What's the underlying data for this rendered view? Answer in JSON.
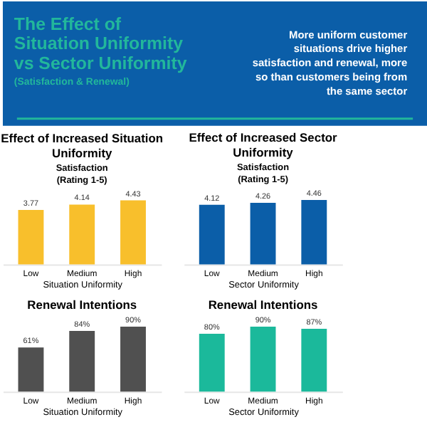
{
  "chart_data": [
    {
      "type": "other",
      "title": "The Effect of Situation Uniformity vs Sector Uniformity",
      "subtitle": "(Satisfaction & Renewal)",
      "annotations": [
        "More uniform customer situations drive higher satisfaction and renewal, more so than customers being from the same sector"
      ]
    },
    {
      "type": "bar",
      "title": "Effect of Increased Situation Uniformity",
      "subtitle": "Satisfaction (Rating 1-5)",
      "xlabel": "Situation Uniformity",
      "categories": [
        "Low",
        "Medium",
        "High"
      ],
      "values": [
        3.77,
        4.14,
        4.43
      ],
      "color": "#f8bf2c",
      "data_labels": true
    },
    {
      "type": "bar",
      "title": "Effect of Increased Sector Uniformity",
      "subtitle": "Satisfaction (Rating 1-5)",
      "xlabel": "Sector Uniformity",
      "categories": [
        "Low",
        "Medium",
        "High"
      ],
      "values": [
        4.12,
        4.26,
        4.46
      ],
      "color": "#0b5ea8",
      "data_labels": true
    },
    {
      "type": "bar",
      "title": "Renewal Intentions",
      "xlabel": "Situation Uniformity",
      "categories": [
        "Low",
        "Medium",
        "High"
      ],
      "values": [
        61,
        84,
        90
      ],
      "value_labels": [
        "61%",
        "84%",
        "90%"
      ],
      "color": "#505050"
    },
    {
      "type": "bar",
      "title": "Renewal Intentions",
      "xlabel": "Sector Uniformity",
      "categories": [
        "Low",
        "Medium",
        "High"
      ],
      "values": [
        80,
        90,
        87
      ],
      "value_labels": [
        "80%",
        "90%",
        "87%"
      ],
      "color": "#1bb99b"
    }
  ]
}
